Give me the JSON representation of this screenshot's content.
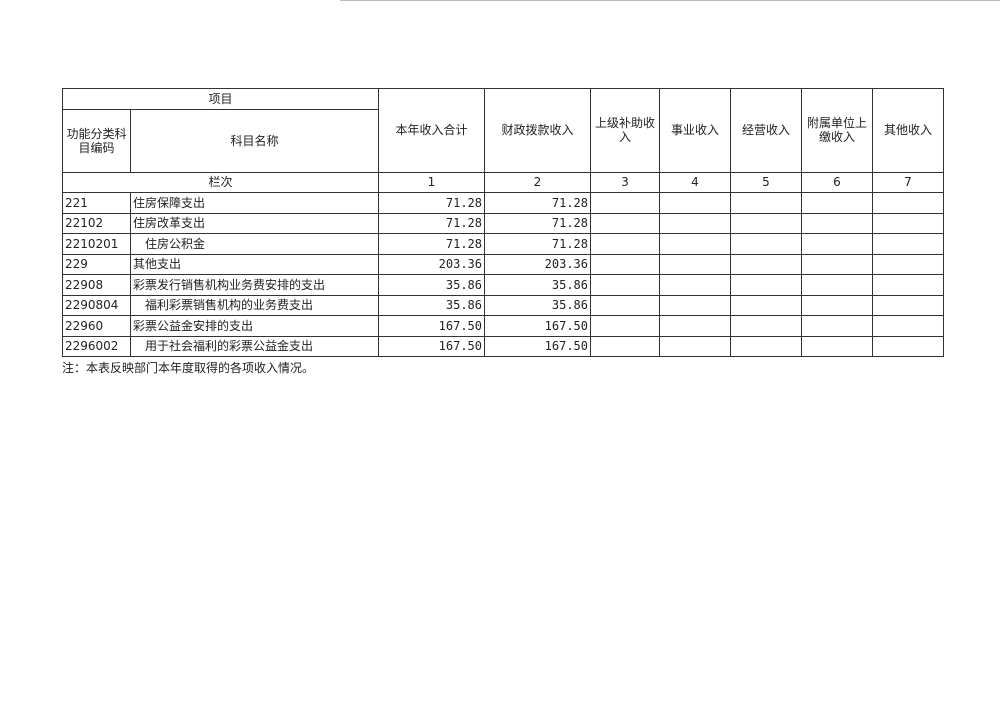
{
  "header": {
    "project": "项目",
    "code": "功能分类科目编码",
    "name": "科目名称",
    "columns": [
      "本年收入合计",
      "财政拨款收入",
      "上级补助收入",
      "事业收入",
      "经营收入",
      "附属单位上缴收入",
      "其他收入"
    ],
    "row_index_label": "栏次",
    "column_numbers": [
      "1",
      "2",
      "3",
      "4",
      "5",
      "6",
      "7"
    ]
  },
  "rows": [
    {
      "code": "221",
      "name": "住房保障支出",
      "indent": false,
      "total": "71.28",
      "fiscal": "71.28"
    },
    {
      "code": "22102",
      "name": "住房改革支出",
      "indent": false,
      "total": "71.28",
      "fiscal": "71.28"
    },
    {
      "code": "2210201",
      "name": "住房公积金",
      "indent": true,
      "total": "71.28",
      "fiscal": "71.28"
    },
    {
      "code": "229",
      "name": "其他支出",
      "indent": false,
      "total": "203.36",
      "fiscal": "203.36"
    },
    {
      "code": "22908",
      "name": "彩票发行销售机构业务费安排的支出",
      "indent": false,
      "total": "35.86",
      "fiscal": "35.86"
    },
    {
      "code": "2290804",
      "name": "福利彩票销售机构的业务费支出",
      "indent": true,
      "total": "35.86",
      "fiscal": "35.86"
    },
    {
      "code": "22960",
      "name": "彩票公益金安排的支出",
      "indent": false,
      "total": "167.50",
      "fiscal": "167.50"
    },
    {
      "code": "2296002",
      "name": "用于社会福利的彩票公益金支出",
      "indent": true,
      "total": "167.50",
      "fiscal": "167.50"
    }
  ],
  "note": "注：本表反映部门本年度取得的各项收入情况。"
}
